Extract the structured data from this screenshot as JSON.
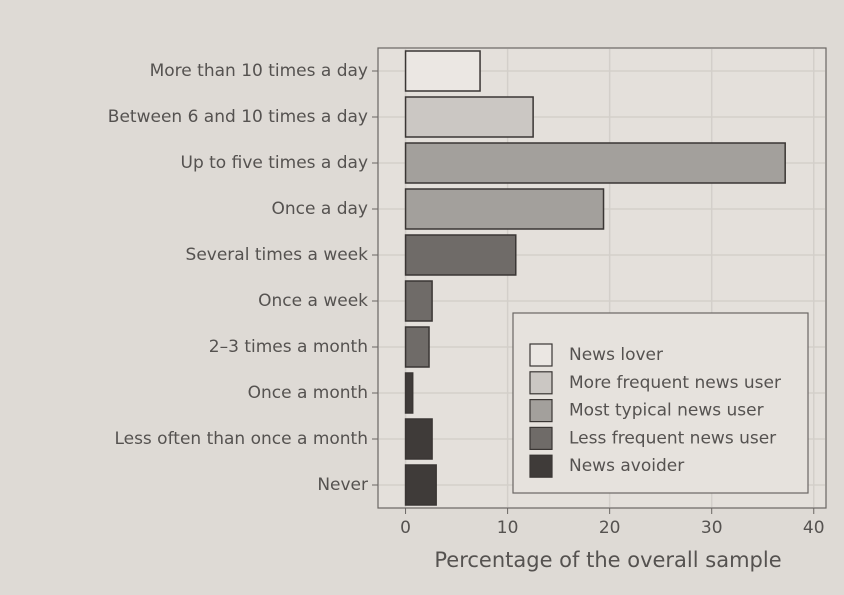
{
  "chart_data": {
    "type": "bar",
    "orientation": "horizontal",
    "xlabel": "Percentage of the overall sample",
    "categories": [
      "More than 10 times a day",
      "Between 6 and 10 times a day",
      "Up to five times a day",
      "Once a day",
      "Several times a week",
      "Once a week",
      "2–3 times a month",
      "Once a month",
      "Less often than once a month",
      "Never"
    ],
    "values": [
      7.3,
      12.5,
      37.2,
      19.4,
      10.8,
      2.6,
      2.3,
      0.7,
      2.6,
      3.0
    ],
    "colors": [
      "#ebe7e3",
      "#cbc7c3",
      "#a3a09c",
      "#a3a09c",
      "#6f6b68",
      "#6f6b68",
      "#6f6b68",
      "#3f3b39",
      "#3f3b39",
      "#3f3b39"
    ],
    "legend": [
      {
        "name": "News lover",
        "color": "#ebe7e3"
      },
      {
        "name": "More frequent news user",
        "color": "#cbc7c3"
      },
      {
        "name": "Most typical news user",
        "color": "#a3a09c"
      },
      {
        "name": "Less frequent news user",
        "color": "#6f6b68"
      },
      {
        "name": "News avoider",
        "color": "#3f3b39"
      }
    ],
    "xlim": [
      -2.7,
      41.2
    ],
    "xticks": [
      0,
      10,
      20,
      30,
      40
    ],
    "grid": true
  }
}
